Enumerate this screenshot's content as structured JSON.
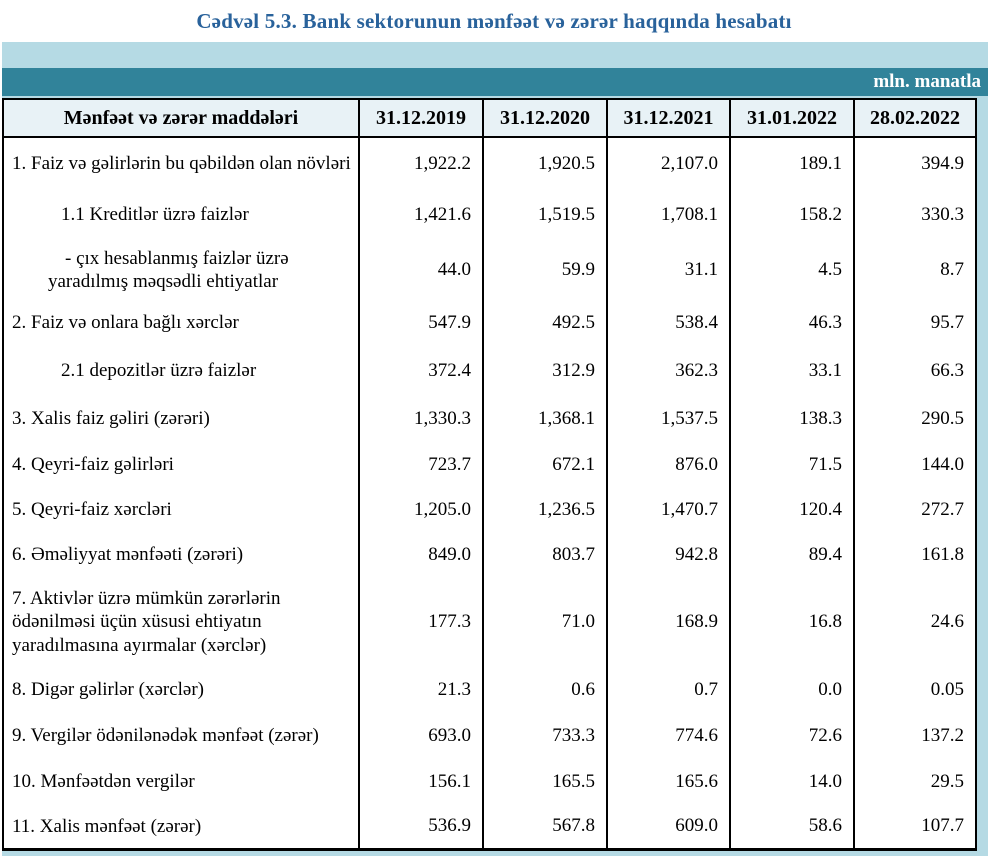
{
  "title": "Cədvəl 5.3. Bank sektorunun mənfəət və zərər haqqında hesabatı",
  "unit_label": "mln. manatla",
  "colors": {
    "title_blue": "#29629b",
    "panel_light_blue": "#b5dae4",
    "band_teal": "#31839a",
    "header_row_bg": "#e8f2f6",
    "border_black": "#000000"
  },
  "table": {
    "label_header": "Mənfəət və zərər maddələri",
    "date_headers": [
      "31.12.2019",
      "31.12.2020",
      "31.12.2021",
      "31.01.2022",
      "28.02.2022"
    ],
    "rows": [
      {
        "style": "item",
        "label": "1. Faiz və gəlirlərin bu qəbildən olan növləri",
        "values": [
          "1,922.2",
          "1,920.5",
          "2,107.0",
          "189.1",
          "394.9"
        ]
      },
      {
        "style": "sub",
        "label": "1.1 Kreditlər üzrə faizlər",
        "values": [
          "1,421.6",
          "1,519.5",
          "1,708.1",
          "158.2",
          "330.3"
        ]
      },
      {
        "style": "dash",
        "label": "-  çıx hesablanmış faizlər üzrə\nyaradılmış məqsədli ehtiyatlar",
        "values": [
          "44.0",
          "59.9",
          "31.1",
          "4.5",
          "8.7"
        ]
      },
      {
        "style": "item",
        "label": "2. Faiz və onlara bağlı xərclər",
        "values": [
          "547.9",
          "492.5",
          "538.4",
          "46.3",
          "95.7"
        ]
      },
      {
        "style": "sub",
        "label": "2.1 depozitlər üzrə faizlər",
        "values": [
          "372.4",
          "312.9",
          "362.3",
          "33.1",
          "66.3"
        ]
      },
      {
        "style": "item",
        "label": "3. Xalis faiz gəliri (zərəri)",
        "values": [
          "1,330.3",
          "1,368.1",
          "1,537.5",
          "138.3",
          "290.5"
        ]
      },
      {
        "style": "item",
        "label": "4. Qeyri-faiz gəlirləri",
        "values": [
          "723.7",
          "672.1",
          "876.0",
          "71.5",
          "144.0"
        ]
      },
      {
        "style": "item",
        "label": "5. Qeyri-faiz xərcləri",
        "values": [
          "1,205.0",
          "1,236.5",
          "1,470.7",
          "120.4",
          "272.7"
        ]
      },
      {
        "style": "item",
        "label": "6. Əməliyyat mənfəəti (zərəri)",
        "values": [
          "849.0",
          "803.7",
          "942.8",
          "89.4",
          "161.8"
        ]
      },
      {
        "style": "item",
        "label": "7. Aktivlər üzrə mümkün zərərlərin\nödənilməsi üçün xüsusi ehtiyatın\nyaradılmasına ayırmalar (xərclər)",
        "values": [
          "177.3",
          "71.0",
          "168.9",
          "16.8",
          "24.6"
        ]
      },
      {
        "style": "item",
        "label": "8. Digər gəlirlər (xərclər)",
        "values": [
          "21.3",
          "0.6",
          "0.7",
          "0.0",
          "0.05"
        ]
      },
      {
        "style": "item",
        "label": "9. Vergilər ödənilənədək mənfəət (zərər)",
        "values": [
          "693.0",
          "733.3",
          "774.6",
          "72.6",
          "137.2"
        ]
      },
      {
        "style": "item",
        "label": "10. Mənfəətdən vergilər",
        "values": [
          "156.1",
          "165.5",
          "165.6",
          "14.0",
          "29.5"
        ]
      },
      {
        "style": "item",
        "label": "11. Xalis mənfəət (zərər)",
        "values": [
          "536.9",
          "567.8",
          "609.0",
          "58.6",
          "107.7"
        ]
      }
    ]
  }
}
